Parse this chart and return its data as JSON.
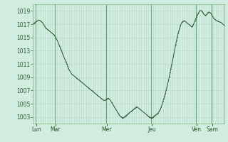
{
  "background_color": "#d0ede0",
  "plot_bg_color": "#d0ede0",
  "line_color": "#2d5a2d",
  "marker_color": "#2d5a2d",
  "grid_minor_color": "#b8d8c8",
  "grid_major_color": "#6aaa7a",
  "tick_label_color": "#2d5a2d",
  "ylim": [
    1002.0,
    1020.0
  ],
  "yticks": [
    1003,
    1005,
    1007,
    1009,
    1011,
    1013,
    1015,
    1017,
    1019
  ],
  "xlim_max": 239,
  "day_labels": [
    "Lun",
    "Mar",
    "Mer",
    "Jeu",
    "Ven",
    "Sam"
  ],
  "day_tick_positions": [
    4,
    28,
    92,
    148,
    204,
    224
  ],
  "day_line_positions": [
    3,
    27,
    91,
    147,
    203,
    223
  ],
  "pressure_data": [
    1017.0,
    1017.1,
    1017.2,
    1017.3,
    1017.4,
    1017.5,
    1017.5,
    1017.6,
    1017.6,
    1017.5,
    1017.4,
    1017.3,
    1017.2,
    1017.0,
    1016.8,
    1016.6,
    1016.4,
    1016.3,
    1016.2,
    1016.1,
    1016.0,
    1015.9,
    1015.8,
    1015.7,
    1015.6,
    1015.5,
    1015.4,
    1015.2,
    1015.0,
    1014.8,
    1014.6,
    1014.3,
    1014.0,
    1013.7,
    1013.4,
    1013.1,
    1012.8,
    1012.5,
    1012.2,
    1011.9,
    1011.6,
    1011.3,
    1011.0,
    1010.7,
    1010.4,
    1010.1,
    1009.9,
    1009.7,
    1009.5,
    1009.4,
    1009.3,
    1009.2,
    1009.1,
    1009.0,
    1008.9,
    1008.8,
    1008.7,
    1008.6,
    1008.5,
    1008.4,
    1008.3,
    1008.2,
    1008.1,
    1008.0,
    1007.9,
    1007.8,
    1007.7,
    1007.6,
    1007.5,
    1007.4,
    1007.3,
    1007.2,
    1007.1,
    1007.0,
    1006.9,
    1006.8,
    1006.7,
    1006.6,
    1006.5,
    1006.4,
    1006.3,
    1006.2,
    1006.1,
    1006.0,
    1005.9,
    1005.8,
    1005.7,
    1005.6,
    1005.5,
    1005.5,
    1005.5,
    1005.6,
    1005.7,
    1005.8,
    1005.8,
    1005.7,
    1005.6,
    1005.4,
    1005.2,
    1005.0,
    1004.8,
    1004.6,
    1004.4,
    1004.2,
    1004.0,
    1003.8,
    1003.6,
    1003.4,
    1003.2,
    1003.1,
    1003.0,
    1002.9,
    1002.9,
    1002.9,
    1003.0,
    1003.1,
    1003.2,
    1003.3,
    1003.4,
    1003.5,
    1003.6,
    1003.7,
    1003.8,
    1003.9,
    1004.0,
    1004.1,
    1004.2,
    1004.3,
    1004.4,
    1004.5,
    1004.5,
    1004.4,
    1004.3,
    1004.2,
    1004.1,
    1004.0,
    1003.9,
    1003.8,
    1003.7,
    1003.6,
    1003.5,
    1003.4,
    1003.3,
    1003.2,
    1003.1,
    1003.0,
    1002.9,
    1002.9,
    1002.9,
    1002.9,
    1003.0,
    1003.1,
    1003.2,
    1003.3,
    1003.4,
    1003.5,
    1003.6,
    1003.8,
    1004.0,
    1004.2,
    1004.5,
    1004.9,
    1005.3,
    1005.7,
    1006.1,
    1006.5,
    1007.0,
    1007.5,
    1008.0,
    1008.5,
    1009.1,
    1009.7,
    1010.3,
    1010.9,
    1011.5,
    1012.1,
    1012.7,
    1013.3,
    1013.9,
    1014.5,
    1015.1,
    1015.6,
    1016.0,
    1016.4,
    1016.8,
    1017.1,
    1017.3,
    1017.4,
    1017.5,
    1017.5,
    1017.4,
    1017.3,
    1017.2,
    1017.1,
    1017.0,
    1016.9,
    1016.8,
    1016.7,
    1016.6,
    1016.7,
    1016.9,
    1017.2,
    1017.5,
    1017.8,
    1018.1,
    1018.4,
    1018.6,
    1018.8,
    1019.0,
    1019.1,
    1019.0,
    1018.9,
    1018.7,
    1018.5,
    1018.4,
    1018.3,
    1018.4,
    1018.5,
    1018.7,
    1018.8,
    1018.8,
    1018.7,
    1018.6,
    1018.4,
    1018.2,
    1018.0,
    1017.8,
    1017.7,
    1017.6,
    1017.5,
    1017.5,
    1017.4,
    1017.4,
    1017.3,
    1017.3,
    1017.2,
    1017.1,
    1017.0,
    1016.9,
    1016.8
  ]
}
